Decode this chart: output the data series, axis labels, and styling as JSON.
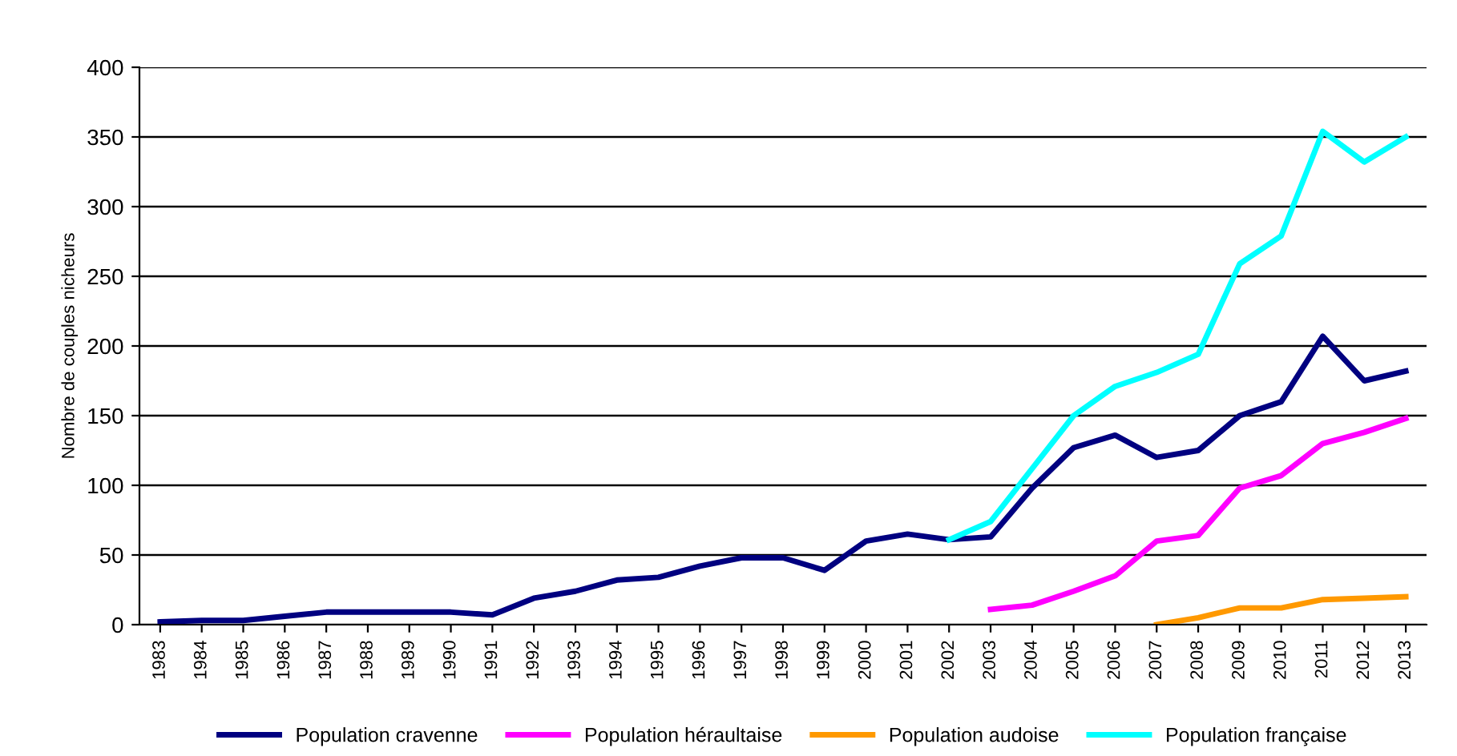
{
  "chart_data": {
    "type": "line",
    "ylabel": "Nombre de couples nicheurs",
    "categories": [
      "1983",
      "1984",
      "1985",
      "1986",
      "1987",
      "1988",
      "1989",
      "1990",
      "1991",
      "1992",
      "1993",
      "1994",
      "1995",
      "1996",
      "1997",
      "1998",
      "1999",
      "2000",
      "2001",
      "2002",
      "2003",
      "2004",
      "2005",
      "2006",
      "2007",
      "2008",
      "2009",
      "2010",
      "2011",
      "2012",
      "2013"
    ],
    "series": [
      {
        "name": "Population cravenne",
        "color": "#000080",
        "values": [
          2,
          3,
          3,
          6,
          9,
          9,
          9,
          9,
          7,
          19,
          24,
          32,
          34,
          42,
          48,
          48,
          39,
          60,
          65,
          61,
          63,
          98,
          127,
          136,
          120,
          125,
          150,
          160,
          207,
          175,
          182
        ]
      },
      {
        "name": "Population héraultaise",
        "color": "#ff00ff",
        "values": [
          null,
          null,
          null,
          null,
          null,
          null,
          null,
          null,
          null,
          null,
          null,
          null,
          null,
          null,
          null,
          null,
          null,
          null,
          null,
          null,
          11,
          14,
          24,
          35,
          60,
          64,
          98,
          107,
          130,
          138,
          148
        ]
      },
      {
        "name": "Population audoise",
        "color": "#ff9900",
        "values": [
          null,
          null,
          null,
          null,
          null,
          null,
          null,
          null,
          null,
          null,
          null,
          null,
          null,
          null,
          null,
          null,
          null,
          null,
          null,
          null,
          null,
          null,
          null,
          null,
          0,
          5,
          12,
          12,
          18,
          19,
          20
        ]
      },
      {
        "name": "Population française",
        "color": "#00ffff",
        "values": [
          null,
          null,
          null,
          null,
          null,
          null,
          null,
          null,
          null,
          null,
          null,
          null,
          null,
          null,
          null,
          null,
          null,
          null,
          null,
          61,
          74,
          112,
          150,
          171,
          181,
          194,
          259,
          279,
          354,
          332,
          350
        ]
      }
    ],
    "ylim": [
      0,
      400
    ],
    "yticks": [
      0,
      50,
      100,
      150,
      200,
      250,
      300,
      350,
      400
    ],
    "grid": "y",
    "legend": "bottom",
    "marker": "none",
    "line_style": "solid"
  }
}
